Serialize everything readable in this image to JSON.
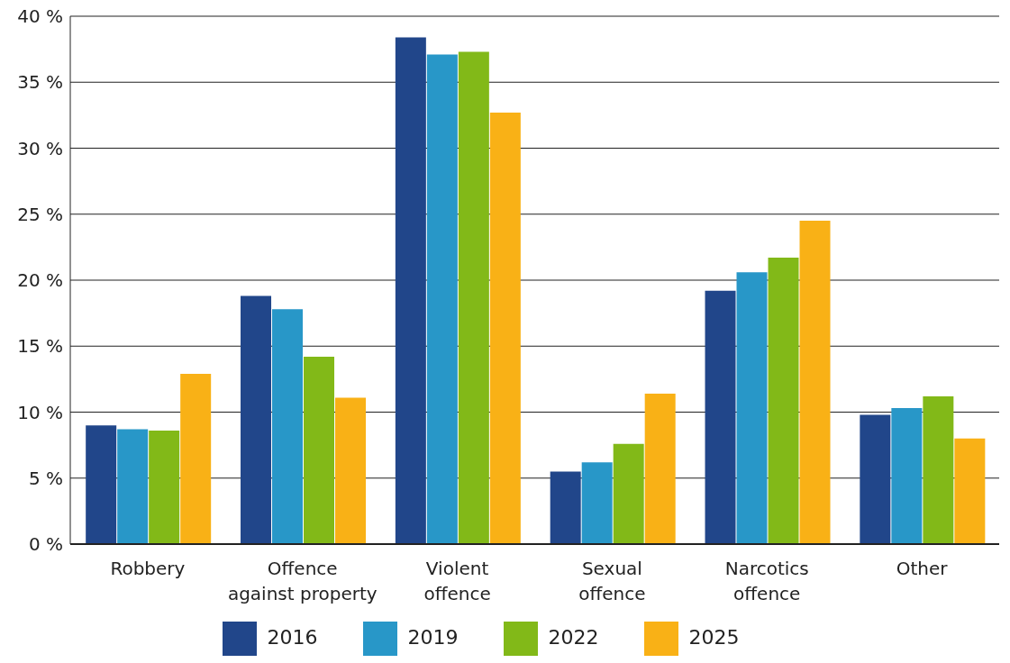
{
  "chart_data": {
    "type": "bar",
    "categories": [
      "Robbery",
      "Offence against property",
      "Violent offence",
      "Sexual offence",
      "Narcotics offence",
      "Other"
    ],
    "series": [
      {
        "name": "2016",
        "color": "#21468a",
        "values": [
          9.0,
          18.8,
          38.4,
          5.5,
          19.2,
          9.8
        ]
      },
      {
        "name": "2019",
        "color": "#2897c8",
        "values": [
          8.7,
          17.8,
          37.1,
          6.2,
          20.6,
          10.3
        ]
      },
      {
        "name": "2022",
        "color": "#82b918",
        "values": [
          8.6,
          14.2,
          37.3,
          7.6,
          21.7,
          11.2
        ]
      },
      {
        "name": "2025",
        "color": "#f9b116",
        "values": [
          12.9,
          11.1,
          32.7,
          11.4,
          24.5,
          8.0
        ]
      }
    ],
    "ylim": [
      0,
      40
    ],
    "yticks": [
      {
        "value": 0,
        "label": "0 %"
      },
      {
        "value": 5,
        "label": "5 %"
      },
      {
        "value": 10,
        "label": "10 %"
      },
      {
        "value": 15,
        "label": "15 %"
      },
      {
        "value": 20,
        "label": "20 %"
      },
      {
        "value": 25,
        "label": "25 %"
      },
      {
        "value": 30,
        "label": "30 %"
      },
      {
        "value": 35,
        "label": "35 %"
      },
      {
        "value": 40,
        "label": "40 %"
      }
    ],
    "grid": "y",
    "legend": "bottom"
  }
}
